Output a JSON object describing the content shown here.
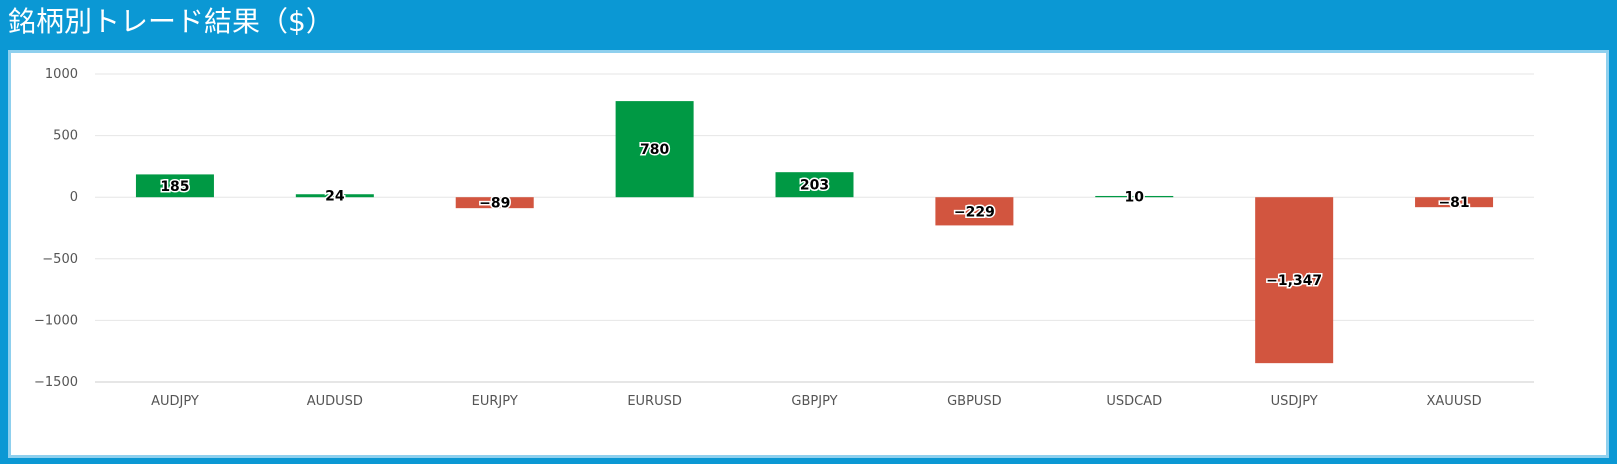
{
  "header": {
    "title": "銘柄別トレード結果（$）"
  },
  "colors": {
    "header_bg": "#0b98d4",
    "positive": "#009944",
    "negative": "#d2553f",
    "grid": "#e6e6e6",
    "axis": "#cccccc"
  },
  "chart_data": {
    "type": "bar",
    "title": "銘柄別トレード結果（$）",
    "xlabel": "",
    "ylabel": "",
    "ylim": [
      -1500,
      1000
    ],
    "yticks": [
      1000,
      500,
      0,
      -500,
      -1000,
      -1500
    ],
    "ytick_labels": [
      "1000",
      "500",
      "0",
      "−500",
      "−1000",
      "−1500"
    ],
    "grid": true,
    "categories": [
      "AUDJPY",
      "AUDUSD",
      "EURJPY",
      "EURUSD",
      "GBPJPY",
      "GBPUSD",
      "USDCAD",
      "USDJPY",
      "XAUUSD"
    ],
    "values": [
      185,
      24,
      -89,
      780,
      203,
      -229,
      10,
      -1347,
      -81
    ],
    "data_labels": [
      "185",
      "24",
      "−89",
      "780",
      "203",
      "−229",
      "10",
      "−1,347",
      "−81"
    ]
  }
}
